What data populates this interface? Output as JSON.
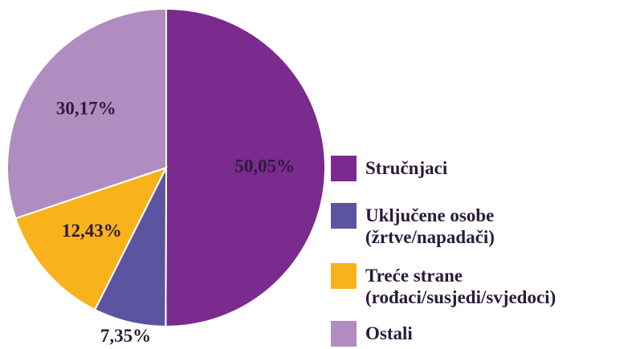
{
  "chart_data": {
    "type": "pie",
    "series": [
      {
        "name": "Stručnjaci",
        "color": "#7b2a8e",
        "values": [
          50.05
        ],
        "value_labels": [
          "50,05%"
        ]
      },
      {
        "name": "Uključene osobe\n(žrtve/napadači)",
        "color": "#5b55a0",
        "values": [
          7.35
        ],
        "value_labels": [
          "7,35%"
        ]
      },
      {
        "name": "Treće strane\n(rođaci/susjedi/svjedoci)",
        "color": "#f9b21b",
        "values": [
          12.43
        ],
        "value_labels": [
          "12,43%"
        ]
      },
      {
        "name": "Ostali",
        "color": "#b08cc0",
        "values": [
          30.17
        ],
        "value_labels": [
          "30,17%"
        ]
      }
    ]
  }
}
